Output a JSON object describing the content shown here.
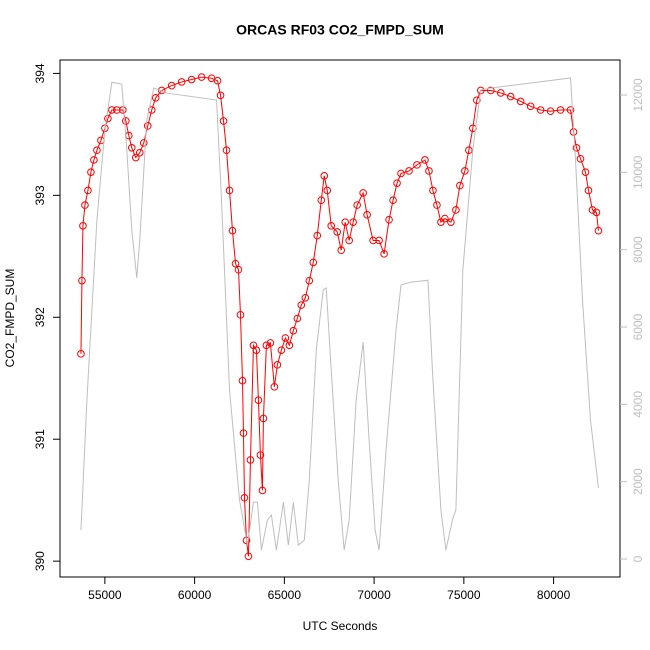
{
  "chart_data": {
    "type": "line",
    "title": "ORCAS RF03 CO2_FMPD_SUM",
    "x_label": "UTC Seconds",
    "y_label": "CO2_FMPD_SUM",
    "xlim": [
      52500,
      83700
    ],
    "xticks": [
      55000,
      60000,
      65000,
      70000,
      75000,
      80000
    ],
    "ylim": [
      389.87,
      394.11
    ],
    "yticks": [
      390,
      391,
      392,
      393,
      394
    ],
    "y2lim": [
      -465,
      12905
    ],
    "y2ticks": [
      0,
      2000,
      4000,
      6000,
      8000,
      10000,
      12000
    ],
    "y2_color": "#bebebe",
    "series": [
      {
        "color": "#ff0000",
        "marker": "circle",
        "x": [
          53667,
          53722,
          53778,
          53889,
          54056,
          54222,
          54389,
          54556,
          54778,
          55000,
          55167,
          55389,
          55667,
          56000,
          56167,
          56333,
          56500,
          56722,
          56944,
          57167,
          57389,
          57611,
          57833,
          58167,
          58722,
          59278,
          59833,
          60389,
          60944,
          61278,
          61444,
          61611,
          61778,
          61944,
          62111,
          62278,
          62444,
          62556,
          62667,
          62722,
          62778,
          62889,
          63000,
          63111,
          63278,
          63444,
          63556,
          63667,
          63778,
          63833,
          64000,
          64222,
          64444,
          64611,
          64833,
          65056,
          65278,
          65500,
          65722,
          65944,
          66167,
          66389,
          66611,
          66833,
          67056,
          67222,
          67389,
          67611,
          67944,
          68167,
          68389,
          68611,
          68833,
          69056,
          69389,
          69611,
          69944,
          70278,
          70556,
          70833,
          71056,
          71278,
          71500,
          71944,
          72389,
          72833,
          73056,
          73278,
          73500,
          73722,
          73944,
          74278,
          74556,
          74778,
          75056,
          75278,
          75500,
          75722,
          75944,
          76500,
          77056,
          77611,
          78167,
          78722,
          79278,
          79833,
          80389,
          80944,
          81111,
          81278,
          81500,
          81778,
          81944,
          82167,
          82389,
          82500
        ],
        "values": [
          391.7,
          392.3,
          392.75,
          392.92,
          393.04,
          393.19,
          393.29,
          393.37,
          393.45,
          393.55,
          393.63,
          393.7,
          393.7,
          393.7,
          393.61,
          393.49,
          393.39,
          393.31,
          393.35,
          393.43,
          393.57,
          393.7,
          393.8,
          393.86,
          393.9,
          393.93,
          393.95,
          393.97,
          393.96,
          393.94,
          393.82,
          393.61,
          393.37,
          393.04,
          392.71,
          392.44,
          392.39,
          392.02,
          391.48,
          391.05,
          390.52,
          390.17,
          390.04,
          390.83,
          391.77,
          391.73,
          391.32,
          390.87,
          390.58,
          391.17,
          391.77,
          391.79,
          391.43,
          391.61,
          391.73,
          391.83,
          391.77,
          391.89,
          391.99,
          392.1,
          392.16,
          392.3,
          392.45,
          392.67,
          392.96,
          393.16,
          393.04,
          392.75,
          392.7,
          392.55,
          392.78,
          392.63,
          392.78,
          392.92,
          393.02,
          392.84,
          392.63,
          392.63,
          392.52,
          392.8,
          392.96,
          393.1,
          393.18,
          393.2,
          393.25,
          393.29,
          393.2,
          393.04,
          392.92,
          392.78,
          392.81,
          392.78,
          392.88,
          393.08,
          393.2,
          393.37,
          393.55,
          393.78,
          393.86,
          393.86,
          393.84,
          393.81,
          393.77,
          393.73,
          393.7,
          393.69,
          393.7,
          393.7,
          393.52,
          393.39,
          393.3,
          393.19,
          393.04,
          392.88,
          392.86,
          392.71
        ]
      },
      {
        "color": "#bebebe",
        "axis": "y2",
        "x": [
          53667,
          54000,
          54556,
          55000,
          55389,
          55944,
          56222,
          56500,
          56778,
          56944,
          57333,
          57722,
          58444,
          61222,
          61500,
          61944,
          62500,
          62944,
          63278,
          63500,
          63722,
          64056,
          64278,
          64556,
          64944,
          65222,
          65500,
          65778,
          66111,
          66389,
          66778,
          67167,
          67333,
          67611,
          68000,
          68333,
          68611,
          69000,
          69389,
          69722,
          70056,
          70278,
          70667,
          71222,
          71500,
          72056,
          73000,
          73278,
          73722,
          74000,
          74389,
          74556,
          74944,
          75500,
          75944,
          76500,
          80944,
          81222,
          81611,
          82056,
          82500
        ],
        "values": [
          750,
          4110,
          8770,
          11090,
          12330,
          12280,
          10580,
          8510,
          7270,
          8250,
          11350,
          12180,
          12050,
          11870,
          9280,
          4370,
          1530,
          360,
          1470,
          1470,
          230,
          1010,
          1140,
          230,
          1470,
          360,
          1470,
          360,
          490,
          2040,
          5400,
          6960,
          7010,
          4890,
          2040,
          230,
          1010,
          4110,
          5610,
          3080,
          750,
          230,
          2820,
          5920,
          7090,
          7160,
          7210,
          4630,
          1270,
          230,
          1060,
          1270,
          7470,
          10580,
          12130,
          12180,
          12440,
          10320,
          6700,
          3590,
          1840
        ]
      }
    ]
  }
}
